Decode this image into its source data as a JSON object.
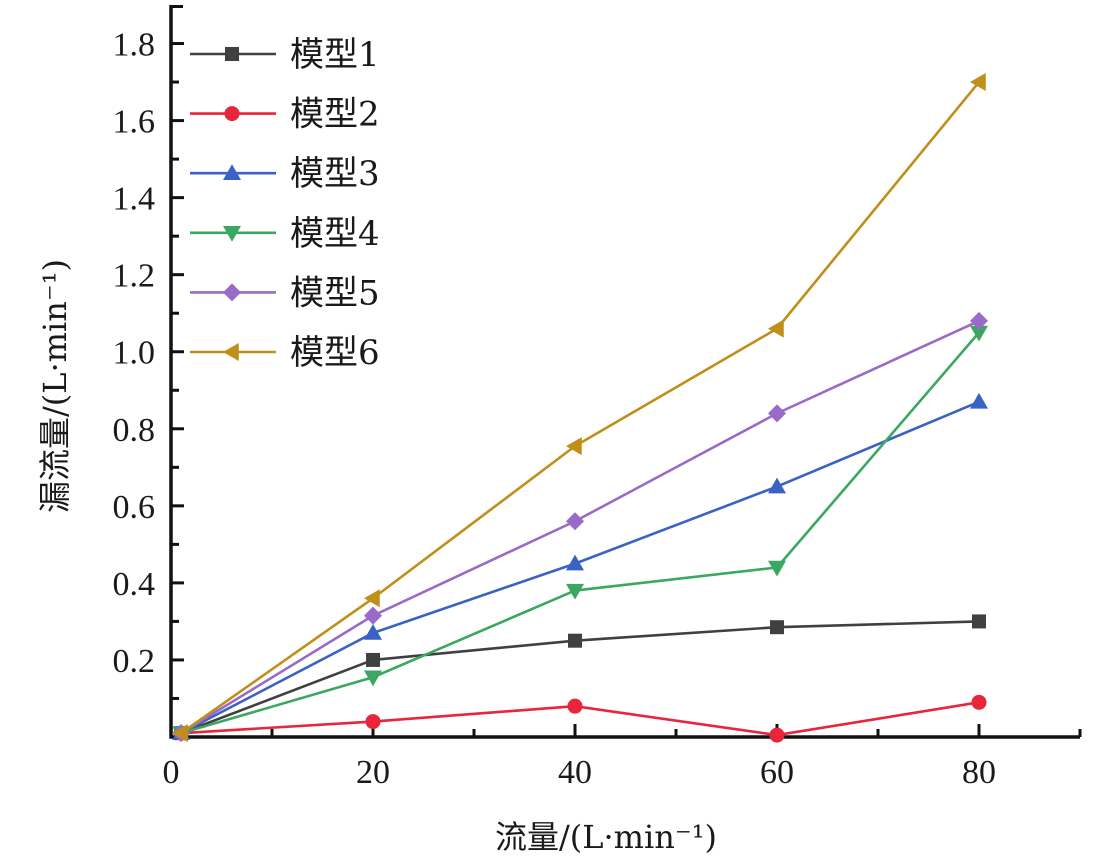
{
  "chart_data": {
    "type": "line",
    "title": "",
    "xlabel": "流量/(L·min⁻¹)",
    "ylabel": "漏流量/(L·min⁻¹)",
    "xlim": [
      0,
      90
    ],
    "ylim": [
      0,
      1.9
    ],
    "x_ticks": [
      0,
      20,
      40,
      60,
      80
    ],
    "x_tick_labels": [
      "0",
      "20",
      "40",
      "60",
      "80"
    ],
    "x_minor_ticks": [
      10,
      30,
      50,
      70,
      90
    ],
    "y_ticks": [
      0.2,
      0.4,
      0.6,
      0.8,
      1.0,
      1.2,
      1.4,
      1.6,
      1.8
    ],
    "y_tick_labels": [
      "0.2",
      "0.4",
      "0.6",
      "0.8",
      "1.0",
      "1.2",
      "1.4",
      "1.6",
      "1.8"
    ],
    "y_minor_ticks": [
      0.1,
      0.3,
      0.5,
      0.7,
      0.9,
      1.1,
      1.3,
      1.5,
      1.7
    ],
    "grid": false,
    "legend_position": "top-left",
    "x": [
      1,
      20,
      40,
      60,
      80
    ],
    "series": [
      {
        "name": "模型1",
        "color": "#404040",
        "marker": "square",
        "values": [
          0.01,
          0.2,
          0.25,
          0.285,
          0.3
        ]
      },
      {
        "name": "模型2",
        "color": "#e8253a",
        "marker": "circle",
        "values": [
          0.01,
          0.04,
          0.08,
          0.005,
          0.09
        ]
      },
      {
        "name": "模型3",
        "color": "#3a62c4",
        "marker": "triangle-up",
        "values": [
          0.01,
          0.27,
          0.45,
          0.65,
          0.87
        ]
      },
      {
        "name": "模型4",
        "color": "#3aa860",
        "marker": "triangle-down",
        "values": [
          0.01,
          0.155,
          0.38,
          0.44,
          1.05
        ]
      },
      {
        "name": "模型5",
        "color": "#9a6ac8",
        "marker": "diamond",
        "values": [
          0.01,
          0.315,
          0.56,
          0.84,
          1.08
        ]
      },
      {
        "name": "模型6",
        "color": "#c08f1a",
        "marker": "triangle-left",
        "values": [
          0.01,
          0.36,
          0.755,
          1.06,
          1.7
        ]
      }
    ]
  }
}
